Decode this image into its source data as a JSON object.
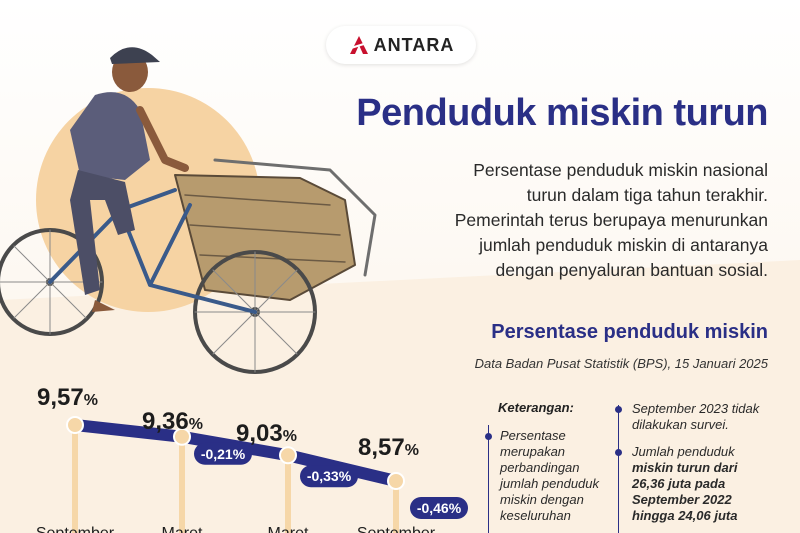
{
  "brand": {
    "name": "ANTARA",
    "accent": "#c8102e"
  },
  "header": {
    "title": "Penduduk miskin turun",
    "description": [
      "Persentase penduduk miskin nasional",
      "turun dalam tiga tahun terakhir.",
      "Pemerintah terus berupaya menurunkan",
      "jumlah penduduk miskin di antaranya",
      "dengan penyaluran bantuan sosial."
    ]
  },
  "chart_section": {
    "subtitle": "Persentase penduduk miskin",
    "source": "Data Badan Pusat Statistik (BPS), 15 Januari 2025"
  },
  "chart_data": {
    "type": "line",
    "categories": [
      "September",
      "Maret",
      "Maret",
      "September"
    ],
    "values": [
      9.57,
      9.36,
      9.03,
      8.57
    ],
    "value_labels": [
      "9,57",
      "9,36",
      "9,03",
      "8,57"
    ],
    "unit": "%",
    "changes": [
      "-0,21%",
      "-0,33%",
      "-0,46%"
    ],
    "title": "Persentase penduduk miskin",
    "grid": false,
    "colors": {
      "line": "#2a2f86",
      "marker": "#f6d7a8",
      "stem": "#f6d7a8"
    }
  },
  "legend": {
    "title": "Keterangan:",
    "notes": [
      {
        "lines": [
          "Persentase",
          "merupakan",
          "perbandingan",
          "jumlah penduduk",
          "miskin dengan",
          "keseluruhan"
        ]
      },
      {
        "lines": [
          "September 2023 tidak",
          "dilakukan survei."
        ]
      },
      {
        "lines": [
          "Jumlah penduduk",
          "miskin turun dari",
          "26,36 juta pada",
          "September 2022",
          "hingga 24,06 juta"
        ]
      }
    ]
  },
  "colors": {
    "navy": "#2a2f86",
    "sun": "#f6d3a3",
    "background": "#fbf5ee"
  }
}
